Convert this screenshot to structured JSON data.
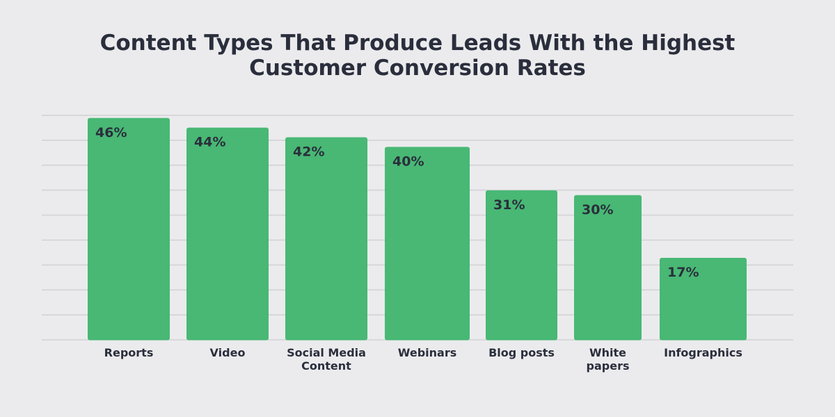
{
  "chart_data": {
    "type": "bar",
    "title": "Content Types That Produce Leads With the Highest Customer Conversion Rates",
    "title_lines": [
      "Content Types That Produce Leads With the Highest",
      "Customer Conversion Rates"
    ],
    "categories": [
      "Reports",
      "Video",
      "Social Media Content",
      "Webinars",
      "Blog posts",
      "White papers",
      "Infographics"
    ],
    "category_lines": [
      [
        "Reports"
      ],
      [
        "Video"
      ],
      [
        "Social Media",
        "Content"
      ],
      [
        "Webinars"
      ],
      [
        "Blog posts"
      ],
      [
        "White",
        "papers"
      ],
      [
        "Infographics"
      ]
    ],
    "values": [
      46,
      44,
      42,
      40,
      31,
      30,
      17
    ],
    "value_labels": [
      "46%",
      "44%",
      "42%",
      "40%",
      "31%",
      "30%",
      "17%"
    ],
    "grid": true,
    "colors": {
      "bar": "#48B874",
      "grid": "#D3D3D7",
      "text": "#2A2E3C",
      "background": "#EBEBED"
    }
  }
}
